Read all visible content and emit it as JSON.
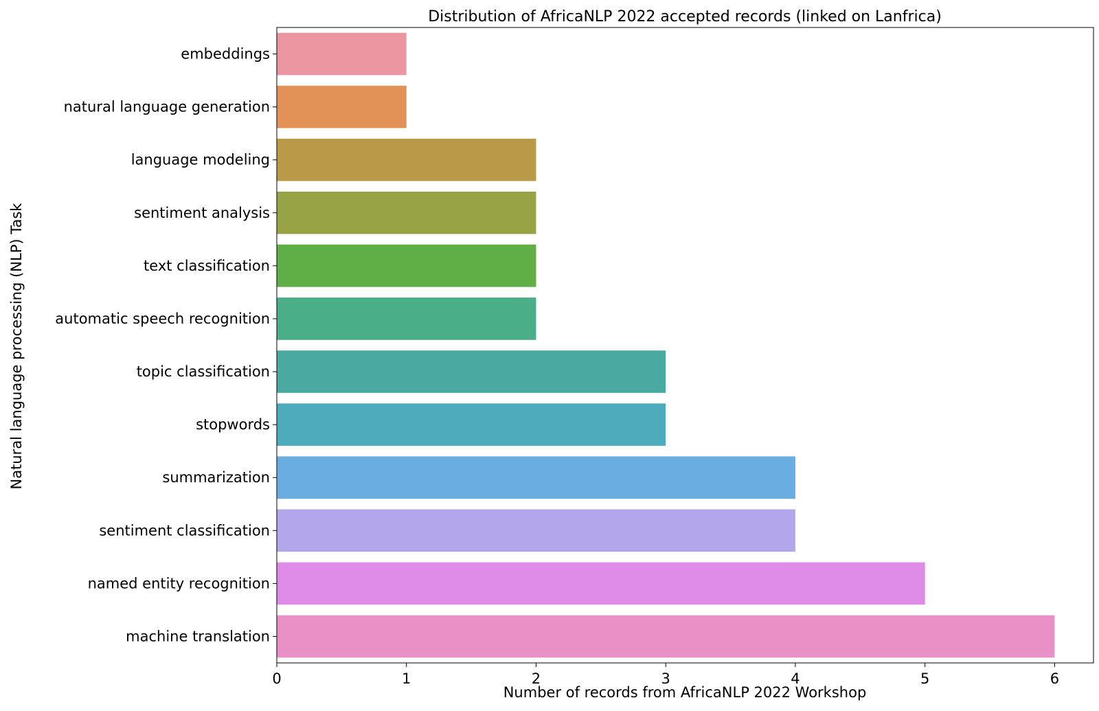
{
  "chart_data": {
    "type": "bar",
    "orientation": "horizontal",
    "title": "Distribution of AfricaNLP 2022 accepted records (linked on Lanfrica)",
    "xlabel": "Number of records from AfricaNLP 2022 Workshop",
    "ylabel": "Natural language processing (NLP) Task",
    "xlim": [
      0,
      6.3
    ],
    "xticks": [
      "0",
      "1",
      "2",
      "3",
      "4",
      "5",
      "6"
    ],
    "grid": false,
    "categories": [
      "embeddings",
      "natural language generation",
      "language modeling",
      "sentiment analysis",
      "text classification",
      "automatic speech recognition",
      "topic classification",
      "stopwords",
      "summarization",
      "sentiment classification",
      "named entity recognition",
      "machine translation"
    ],
    "values": [
      1,
      1,
      2,
      2,
      2,
      2,
      3,
      3,
      4,
      4,
      5,
      6
    ],
    "colors": [
      "#ec96a1",
      "#e29256",
      "#b89a48",
      "#98a346",
      "#5fae46",
      "#4aae88",
      "#4aaaa2",
      "#4eabbc",
      "#6aaee1",
      "#b4a6ea",
      "#df8ce8",
      "#e991c6"
    ]
  }
}
